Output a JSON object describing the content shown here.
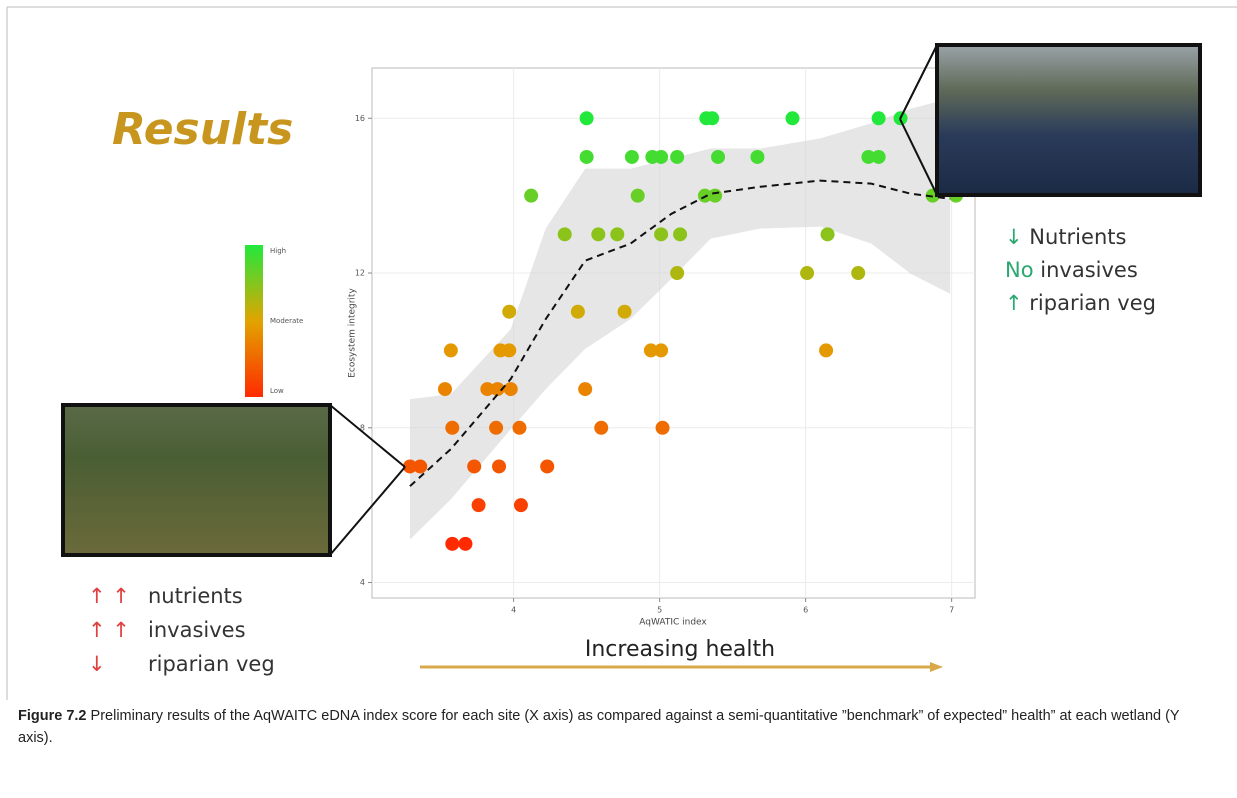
{
  "chart_data": {
    "type": "scatter",
    "x_label": "AqWATIC index",
    "y_label": "Ecosystem integrity",
    "xlim": [
      3.03,
      7.16
    ],
    "ylim": [
      3.6,
      17.3
    ],
    "xticks": [
      4,
      5,
      6,
      7
    ],
    "yticks": [
      4,
      8,
      12,
      16
    ],
    "grid": true,
    "x": [
      4.5,
      5.32,
      5.36,
      5.91,
      6.5,
      6.65,
      4.5,
      4.81,
      4.95,
      5.01,
      5.12,
      5.4,
      5.67,
      6.43,
      6.5,
      4.12,
      4.85,
      5.31,
      5.38,
      6.87,
      7.03,
      4.35,
      4.58,
      4.71,
      5.01,
      5.14,
      6.15,
      5.12,
      6.01,
      6.36,
      3.97,
      4.44,
      4.76,
      3.57,
      3.91,
      3.97,
      4.94,
      5.01,
      6.14,
      3.53,
      3.82,
      3.89,
      3.98,
      4.49,
      3.58,
      3.88,
      4.04,
      4.6,
      5.02,
      3.29,
      3.36,
      3.73,
      3.9,
      4.23,
      3.76,
      4.05,
      3.58,
      3.67
    ],
    "values": [
      16,
      16,
      16,
      16,
      16,
      16,
      15,
      15,
      15,
      15,
      15,
      15,
      15,
      15,
      15,
      14,
      14,
      14,
      14,
      14,
      14,
      13,
      13,
      13,
      13,
      13,
      13,
      12,
      12,
      12,
      11,
      11,
      11,
      10,
      10,
      10,
      10,
      10,
      10,
      9,
      9,
      9,
      9,
      9,
      8,
      8,
      8,
      8,
      8,
      7,
      7,
      7,
      7,
      7,
      6,
      6,
      5,
      5
    ],
    "colorbar": {
      "labels": [
        "High",
        "Moderate",
        "Low"
      ],
      "colors": [
        "#22e83c",
        "#e2a400",
        "#ff2a00"
      ]
    },
    "trend": {
      "x": [
        3.29,
        3.57,
        3.98,
        4.22,
        4.49,
        4.8,
        5.08,
        5.35,
        5.69,
        6.1,
        6.45,
        6.72,
        6.99
      ],
      "values": [
        6.49,
        7.45,
        9.26,
        10.81,
        12.32,
        12.76,
        13.53,
        14.05,
        14.23,
        14.39,
        14.31,
        14.05,
        13.92
      ],
      "lower": [
        5.11,
        6.15,
        7.96,
        9.0,
        10.04,
        10.81,
        11.85,
        12.89,
        13.15,
        13.2,
        12.76,
        11.98,
        11.46
      ],
      "upper": [
        8.74,
        8.87,
        10.55,
        13.15,
        14.7,
        14.7,
        14.96,
        15.22,
        15.22,
        15.48,
        15.87,
        16.25,
        16.51
      ]
    },
    "heading": "Results",
    "right_notes": [
      {
        "marker": "↓",
        "text": "Nutrients"
      },
      {
        "marker": "No",
        "text": "invasives"
      },
      {
        "marker": "↑",
        "text": "riparian veg"
      }
    ],
    "left_notes": [
      {
        "marker": "↑ ↑",
        "text": "nutrients"
      },
      {
        "marker": "↑ ↑",
        "text": "invasives"
      },
      {
        "marker": "↓",
        "text": "riparian veg"
      }
    ],
    "health_arrow": "Increasing health"
  },
  "caption": {
    "label": "Figure 7.2",
    "text": "Preliminary results of the AqWAITC eDNA index score for each site (X axis) as compared against a semi-quantitative ”benchmark” of expected” health” at each wetland (Y axis)."
  }
}
